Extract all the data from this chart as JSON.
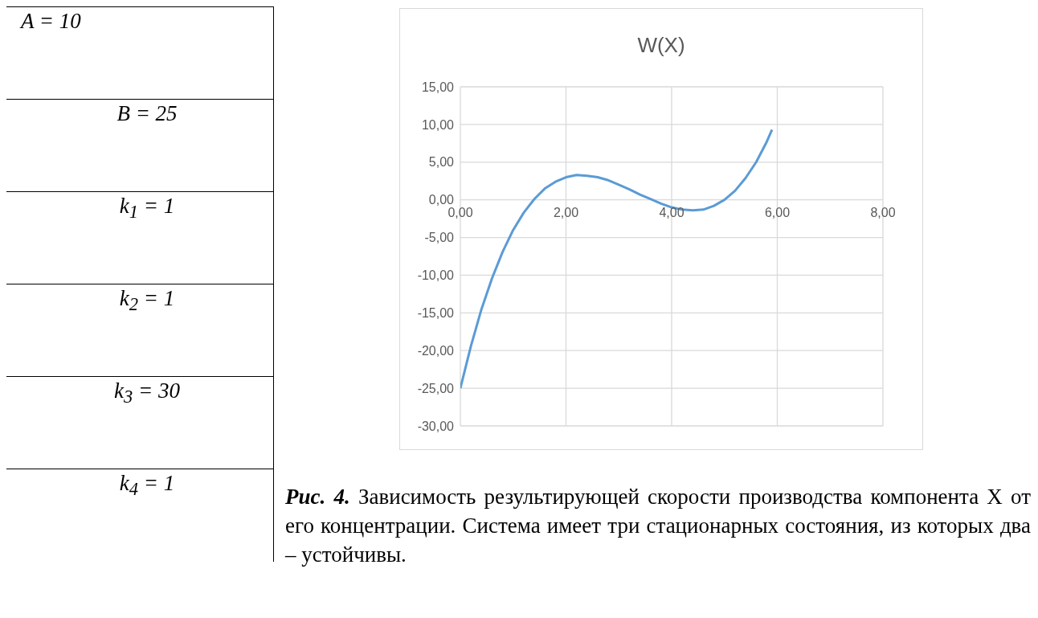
{
  "chart_data": {
    "type": "line",
    "title": "W(X)",
    "x": [
      0,
      0.2,
      0.4,
      0.6,
      0.8,
      1.0,
      1.2,
      1.4,
      1.6,
      1.8,
      2.0,
      2.2,
      2.4,
      2.6,
      2.8,
      3.0,
      3.2,
      3.4,
      3.6,
      3.8,
      4.0,
      4.2,
      4.4,
      4.6,
      4.8,
      5.0,
      5.2,
      5.4,
      5.6,
      5.8,
      5.9
    ],
    "series": [
      {
        "color": "#5b9bd5",
        "values": [
          -25,
          -19.4,
          -14.5,
          -10.4,
          -6.9,
          -4.0,
          -1.7,
          0.1,
          1.5,
          2.4,
          3.0,
          3.3,
          3.2,
          3.0,
          2.6,
          2.0,
          1.4,
          0.7,
          0.1,
          -0.5,
          -1.0,
          -1.3,
          -1.4,
          -1.3,
          -0.8,
          0,
          1.2,
          2.9,
          5.0,
          7.7,
          9.3
        ]
      }
    ],
    "xlim": [
      0,
      8
    ],
    "xticks": [
      {
        "value": 0,
        "label": "0,00"
      },
      {
        "value": 2,
        "label": "2,00"
      },
      {
        "value": 4,
        "label": "4,00"
      },
      {
        "value": 6,
        "label": "6,00"
      },
      {
        "value": 8,
        "label": "8,00"
      }
    ],
    "ylim": [
      -30,
      15
    ],
    "yticks": [
      {
        "value": -30,
        "label": "-30,00"
      },
      {
        "value": -25,
        "label": "-25,00"
      },
      {
        "value": -20,
        "label": "-20,00"
      },
      {
        "value": -15,
        "label": "-15,00"
      },
      {
        "value": -10,
        "label": "-10,00"
      },
      {
        "value": -5,
        "label": "-5,00"
      },
      {
        "value": 0,
        "label": "0,00"
      },
      {
        "value": 5,
        "label": "5,00"
      },
      {
        "value": 10,
        "label": "10,00"
      },
      {
        "value": 15,
        "label": "15,00"
      }
    ],
    "grid": true,
    "annotations": [
      "A = 10",
      "B = 25",
      "k$_{1}$ = 1",
      "k$_{2}$ = 1",
      "k$_{3}$ = 30",
      "k$_{4}$ = 1",
      "Рис. 4.",
      "Зависимость результирующей скорости производства компонента X от его концентрации. Система имеет три стационарных состояния, из которых два – устойчивы."
    ]
  }
}
